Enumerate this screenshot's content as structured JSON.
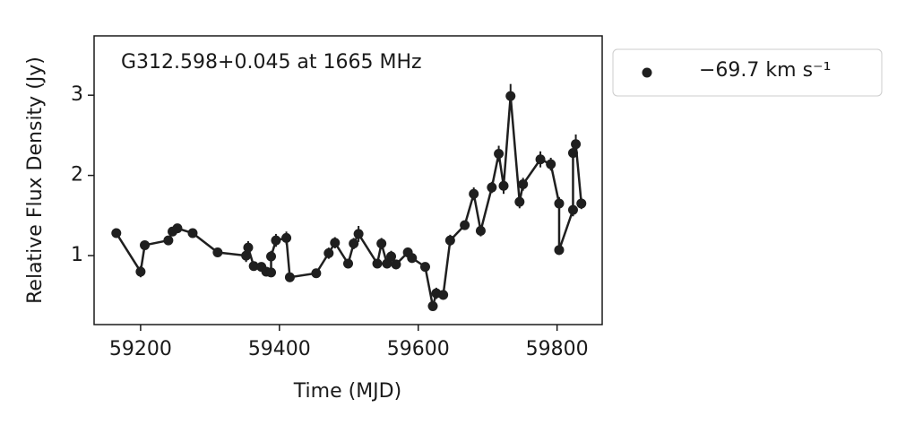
{
  "chart_data": {
    "type": "line",
    "annotation": "G312.598+0.045 at 1665 MHz",
    "xlabel": "Time (MJD)",
    "ylabel": "Relative Flux Density (Jy)",
    "x": [
      59165,
      59200,
      59206,
      59240,
      59246,
      59253,
      59275,
      59311,
      59352,
      59355,
      59363,
      59374,
      59381,
      59388,
      59388,
      59395,
      59410,
      59415,
      59453,
      59471,
      59480,
      59499,
      59507,
      59514,
      59541,
      59547,
      59555,
      59561,
      59568,
      59585,
      59591,
      59610,
      59621,
      59626,
      59636,
      59646,
      59667,
      59680,
      59690,
      59706,
      59716,
      59723,
      59733,
      59746,
      59751,
      59776,
      59791,
      59803,
      59803,
      59823,
      59823,
      59827,
      59835
    ],
    "series": [
      {
        "name": "−69.7 km s⁻¹",
        "color": "#1f1f1f",
        "values": [
          1.28,
          0.8,
          1.13,
          1.19,
          1.3,
          1.34,
          1.28,
          1.04,
          1.0,
          1.1,
          0.87,
          0.86,
          0.8,
          0.79,
          0.99,
          1.19,
          1.22,
          0.73,
          0.78,
          1.03,
          1.16,
          0.9,
          1.15,
          1.27,
          0.9,
          1.15,
          0.9,
          0.99,
          0.89,
          1.04,
          0.97,
          0.86,
          0.37,
          0.53,
          0.51,
          1.19,
          1.38,
          1.77,
          1.31,
          1.85,
          2.27,
          1.87,
          2.99,
          1.67,
          1.89,
          2.2,
          2.14,
          1.65,
          1.07,
          1.57,
          2.28,
          2.39,
          1.65
        ],
        "errors": [
          0.05,
          0.07,
          0.05,
          0.05,
          0.05,
          0.05,
          0.05,
          0.05,
          0.08,
          0.08,
          0.05,
          0.05,
          0.05,
          0.05,
          0.07,
          0.08,
          0.08,
          0.06,
          0.05,
          0.07,
          0.07,
          0.06,
          0.07,
          0.1,
          0.05,
          0.07,
          0.06,
          0.07,
          0.06,
          0.06,
          0.06,
          0.05,
          0.06,
          0.07,
          0.06,
          0.07,
          0.06,
          0.08,
          0.07,
          0.07,
          0.1,
          0.1,
          0.15,
          0.08,
          0.08,
          0.1,
          0.08,
          0.08,
          0.06,
          0.08,
          0.1,
          0.12,
          0.07
        ]
      }
    ],
    "xlim": [
      59133,
      59865
    ],
    "ylim": [
      0.14,
      3.74
    ],
    "xticks": [
      59200,
      59400,
      59600,
      59800
    ],
    "yticks": [
      1,
      2,
      3
    ],
    "legend": "outside-right"
  }
}
